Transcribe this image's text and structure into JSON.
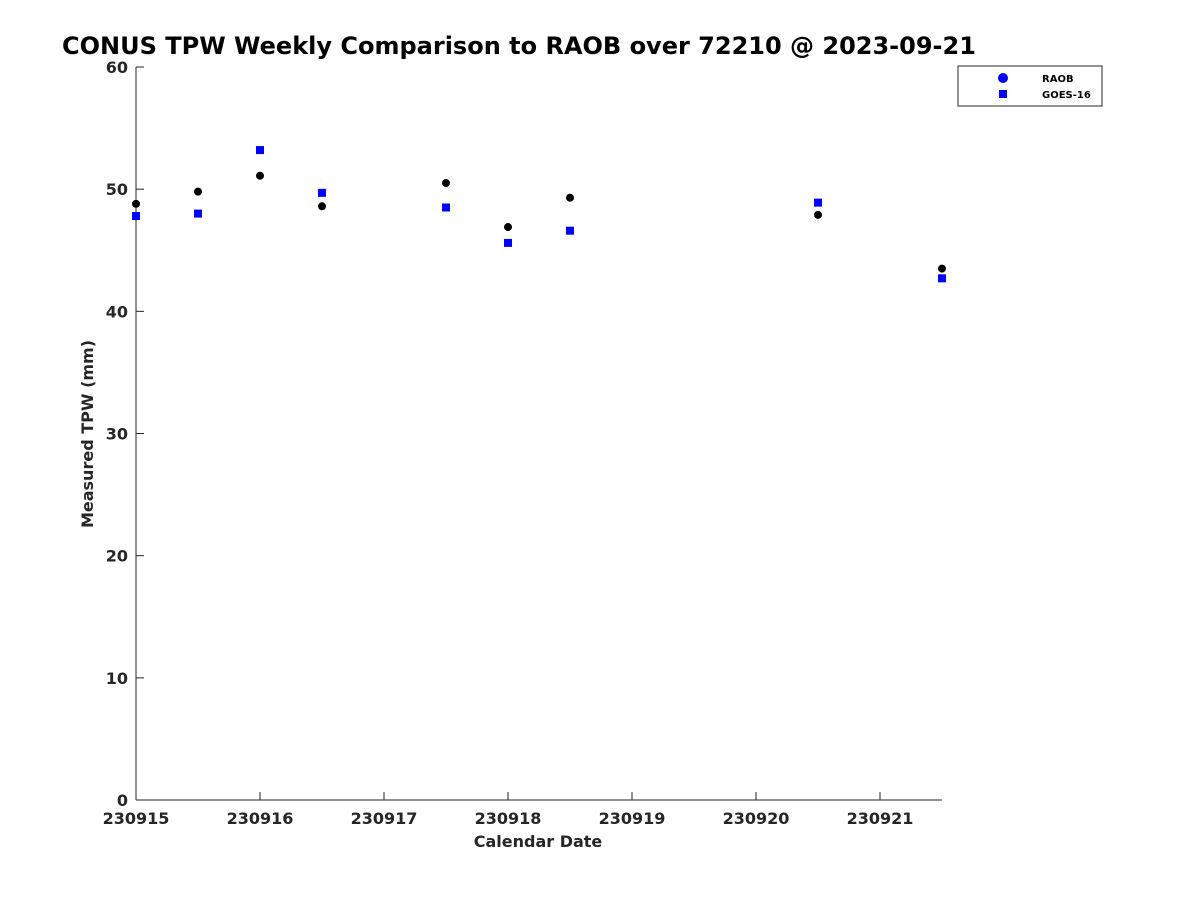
{
  "chart_data": {
    "type": "scatter",
    "title": "CONUS TPW Weekly Comparison to RAOB over 72210 @ 2023-09-21",
    "xlabel": "Calendar Date",
    "ylabel": "Measured TPW (mm)",
    "xlim": [
      0,
      6.5
    ],
    "ylim": [
      0,
      60
    ],
    "x_ticks": [
      0,
      1,
      2,
      3,
      4,
      5,
      6
    ],
    "x_tick_labels": [
      "230915",
      "230916",
      "230917",
      "230918",
      "230919",
      "230920",
      "230921"
    ],
    "y_ticks": [
      0,
      10,
      20,
      30,
      40,
      50,
      60
    ],
    "y_tick_labels": [
      "0",
      "10",
      "20",
      "30",
      "40",
      "50",
      "60"
    ],
    "grid": false,
    "legend_position": "top-right",
    "series": [
      {
        "name": "RAOB",
        "marker": "circle",
        "color": "#000000",
        "legend_color": "#0000ff",
        "x": [
          0,
          0.5,
          1,
          1.5,
          2.5,
          3,
          3.5,
          5.5,
          6.5
        ],
        "y": [
          48.8,
          49.8,
          51.1,
          48.6,
          50.5,
          46.9,
          49.3,
          47.9,
          43.5
        ]
      },
      {
        "name": "GOES-16",
        "marker": "square",
        "color": "#0000ff",
        "legend_color": "#0000ff",
        "x": [
          0,
          0.5,
          1,
          1.5,
          2.5,
          3,
          3.5,
          5.5,
          6.5
        ],
        "y": [
          47.8,
          48.0,
          53.2,
          49.7,
          48.5,
          45.6,
          46.6,
          48.9,
          42.7
        ]
      }
    ]
  }
}
